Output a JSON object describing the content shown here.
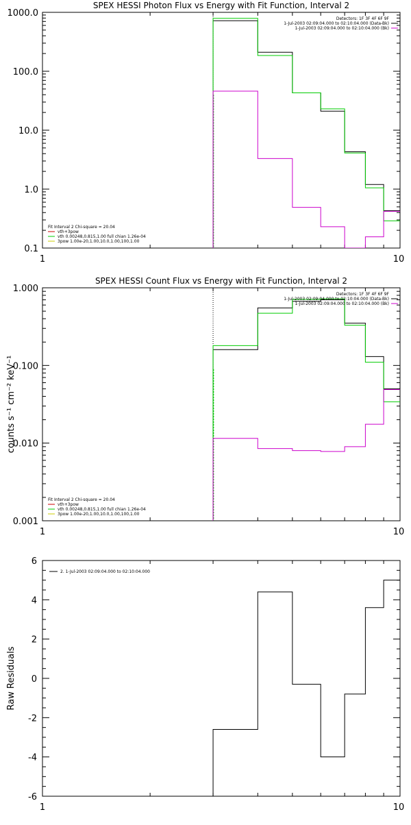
{
  "chart_data": [
    {
      "type": "line",
      "title": "SPEX HESSI Photon Flux vs Energy with Fit Function, Interval 2",
      "xlabel": "",
      "ylabel": "",
      "xscale": "log",
      "yscale": "log",
      "xlim": [
        1,
        10
      ],
      "ylim": [
        0.1,
        1000
      ],
      "xtick_labels": [
        "1",
        "10"
      ],
      "ytick_labels": [
        "0.1",
        "1.0",
        "10.0",
        "100.0",
        "1000.0"
      ],
      "step_edges": [
        3,
        3.5,
        4,
        4.5,
        5,
        5.5,
        6,
        6.5,
        7,
        7.5,
        8,
        8.5,
        9,
        9.5,
        10
      ],
      "series": [
        {
          "color": "#000000",
          "values": [
            720,
            720,
            210,
            210,
            43,
            43,
            21,
            21,
            4.3,
            4.3,
            1.2,
            1.2,
            0.43,
            0.43
          ]
        },
        {
          "color": "#00cc00",
          "values": [
            790,
            790,
            185,
            185,
            43,
            43,
            23,
            23,
            4.1,
            4.1,
            1.05,
            1.05,
            0.29,
            0.29
          ]
        },
        {
          "color": "#cc00cc",
          "values": [
            46,
            46,
            3.3,
            3.3,
            0.49,
            0.49,
            0.23,
            0.23,
            0.1,
            0.1,
            0.155,
            0.155,
            0.42,
            0.42
          ]
        }
      ],
      "vline_x": 3,
      "legend_top_right": [
        {
          "text": "Detectors: 1F 3F 4F 6F 9F",
          "color": "#000000"
        },
        {
          "text": "1-Jul-2003 02:09:04.000 to 02:10:04.000 (Data-Bk)",
          "color": "#000000"
        },
        {
          "text": "1-Jul-2003 02:09:04.000 to 02:10:04.000 (Bk)",
          "color": "#cc00cc"
        }
      ],
      "legend_bottom_left": [
        {
          "text": "Fit Interval 2   Chi-square = 20.04",
          "color": "#000000"
        },
        {
          "text": "vth+3pow",
          "color": "#cc0000"
        },
        {
          "text": "vth 0.00248,0.815,1.00  full chian 1.26e-04",
          "color": "#00cc00"
        },
        {
          "text": "3pow 1.00e-20,1.00,10.0,1.00,100,1.00",
          "color": "#cccc00"
        }
      ]
    },
    {
      "type": "line",
      "title": "SPEX HESSI Count Flux vs Energy with Fit Function, Interval 2",
      "xlabel": "",
      "ylabel": "counts s⁻¹ cm⁻² keV⁻¹",
      "xscale": "log",
      "yscale": "log",
      "xlim": [
        1,
        10
      ],
      "ylim": [
        0.001,
        1
      ],
      "xtick_labels": [
        "1",
        "10"
      ],
      "ytick_labels": [
        "0.001",
        "0.010",
        "0.100",
        "1.000"
      ],
      "step_edges": [
        3,
        3.5,
        4,
        4.5,
        5,
        5.5,
        6,
        6.5,
        7,
        7.5,
        8,
        8.5,
        9,
        9.5,
        10
      ],
      "series": [
        {
          "color": "#000000",
          "values": [
            0.16,
            0.16,
            0.55,
            0.55,
            0.67,
            0.67,
            0.7,
            0.7,
            0.35,
            0.35,
            0.13,
            0.13,
            0.05,
            0.05
          ]
        },
        {
          "color": "#00cc00",
          "values": [
            0.18,
            0.18,
            0.47,
            0.47,
            0.71,
            0.71,
            0.72,
            0.72,
            0.33,
            0.33,
            0.11,
            0.11,
            0.034,
            0.034
          ]
        },
        {
          "color": "#cc00cc",
          "values": [
            0.0115,
            0.0115,
            0.0085,
            0.0085,
            0.008,
            0.008,
            0.0078,
            0.0078,
            0.009,
            0.009,
            0.0175,
            0.0175,
            0.049,
            0.049
          ]
        }
      ],
      "vline_x": 3,
      "legend_top_right": [
        {
          "text": "Detectors: 1F 3F 4F 6F 9F",
          "color": "#000000"
        },
        {
          "text": "1-Jul-2003 02:09:04.000 to 02:10:04.000 (Data-Bk)",
          "color": "#000000"
        },
        {
          "text": "1-Jul-2003 02:09:04.000 to 02:10:04.000 (Bk)",
          "color": "#cc00cc"
        }
      ],
      "legend_bottom_left": [
        {
          "text": "Fit Interval 2   Chi-square = 20.04",
          "color": "#000000"
        },
        {
          "text": "vth+3pow",
          "color": "#cc0000"
        },
        {
          "text": "vth 0.00248,0.815,1.00  full chian 1.26e-04",
          "color": "#00cc00"
        },
        {
          "text": "3pow 1.00e-20,1.00,10.0,1.00,100,1.00",
          "color": "#cccc00"
        }
      ]
    },
    {
      "type": "line",
      "title": "",
      "xlabel": "",
      "ylabel": "Raw Residuals",
      "xscale": "log",
      "yscale": "linear",
      "xlim": [
        1,
        10
      ],
      "ylim": [
        -6,
        6
      ],
      "xtick_labels": [
        "1",
        "10"
      ],
      "ytick_values": [
        -6,
        -4,
        -2,
        0,
        2,
        4,
        6
      ],
      "ytick_labels": [
        "-6",
        "-4",
        "-2",
        "0",
        "2",
        "4",
        "6"
      ],
      "step_edges": [
        3,
        4,
        5,
        6,
        7,
        8,
        9,
        10
      ],
      "series": [
        {
          "color": "#000000",
          "values": [
            -2.6,
            4.4,
            -0.3,
            -4.0,
            -0.8,
            3.6,
            5.0
          ]
        }
      ],
      "legend_top_left": [
        {
          "text": "2.  1-Jul-2003 02:09:04.000 to 02:10:04.000",
          "color": "#000000"
        }
      ]
    }
  ]
}
